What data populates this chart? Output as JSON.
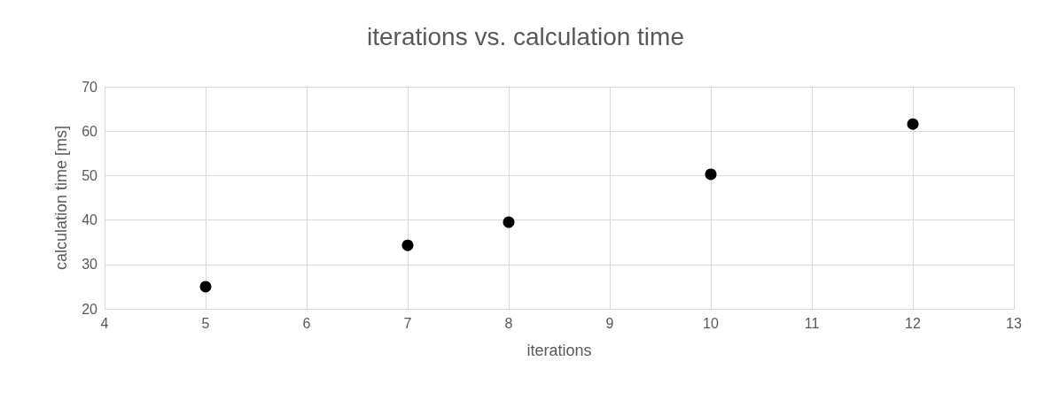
{
  "chart_data": {
    "type": "scatter",
    "title": "iterations vs. calculation time",
    "xlabel": "iterations",
    "ylabel": "calculation time [ms]",
    "x": [
      5,
      7,
      8,
      10,
      12
    ],
    "series": [
      {
        "color": "#000000",
        "values": [
          25,
          34.3,
          39.5,
          50.3,
          61.6
        ]
      }
    ],
    "xlim": [
      4,
      13
    ],
    "xticks": [
      4,
      5,
      6,
      7,
      8,
      9,
      10,
      11,
      12,
      13
    ],
    "ylim": [
      20,
      70
    ],
    "yticks": [
      20,
      30,
      40,
      50,
      60,
      70
    ],
    "grid": true,
    "marker": "circle"
  }
}
